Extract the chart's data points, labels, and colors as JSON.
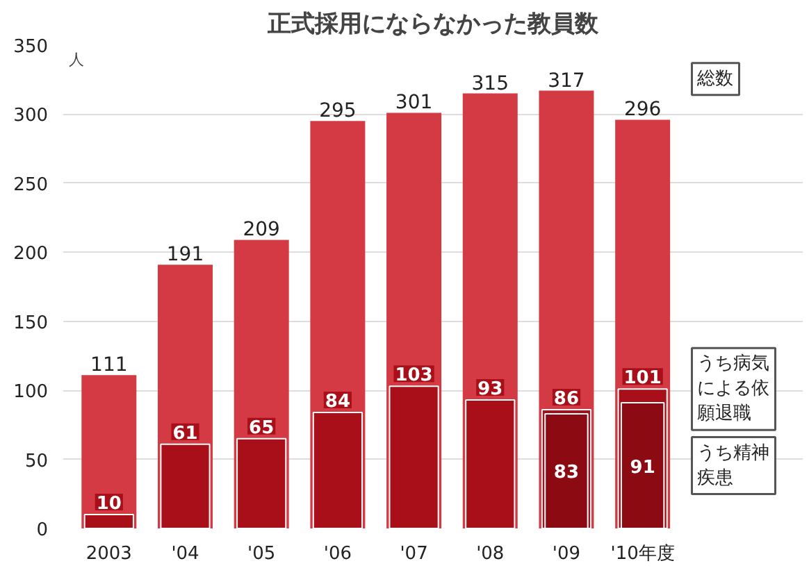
{
  "chart_data": {
    "type": "bar",
    "title": "正式採用にならなかった教員数",
    "ylabel": "人",
    "categories": [
      "2003",
      "'04",
      "'05",
      "'06",
      "'07",
      "'08",
      "'09",
      "'10年度"
    ],
    "series": [
      {
        "name": "総数",
        "color": "#d43a44",
        "values": [
          111,
          191,
          209,
          295,
          301,
          315,
          317,
          296
        ]
      },
      {
        "name": "うち病気による依願退職",
        "color": "#a80f18",
        "values": [
          10,
          61,
          65,
          84,
          103,
          93,
          86,
          101
        ]
      },
      {
        "name": "うち精神疾患",
        "color": "#8c0a12",
        "values": [
          null,
          null,
          null,
          null,
          null,
          null,
          83,
          91
        ]
      }
    ],
    "ylim": [
      0,
      350
    ],
    "yticks": [
      0,
      50,
      100,
      150,
      200,
      250,
      300,
      350
    ],
    "grid": "y",
    "data_labels": true
  }
}
